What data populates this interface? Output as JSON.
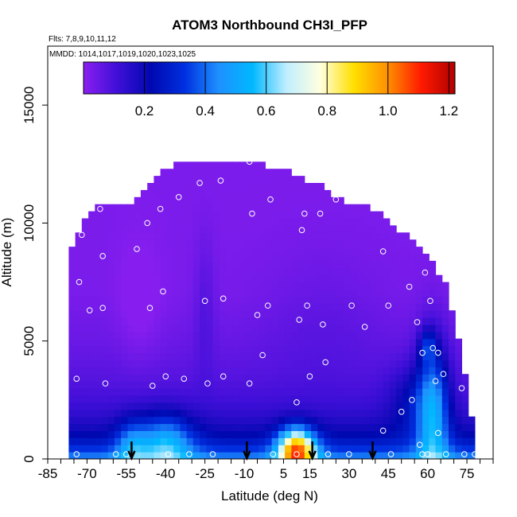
{
  "chart_data": {
    "type": "heatmap",
    "title": "ATOM3 Northbound CH3I_PFP",
    "subtitle_flights": "Flts: 7,8,9,10,11,12",
    "subtitle_dates": "MMDD: 1014,1017,1019,1020,1023,1025",
    "xlabel": "Latitude (deg N)",
    "ylabel": "Altitude (m)",
    "xlim": [
      -85,
      85
    ],
    "ylim": [
      0,
      17500
    ],
    "x_tick_labels": [
      "-85",
      "-70",
      "-55",
      "-40",
      "-25",
      "-10",
      "5",
      "15",
      "30",
      "45",
      "60",
      "75"
    ],
    "x_tick_values": [
      -85,
      -70,
      -55,
      -40,
      -25,
      -10,
      5,
      15,
      30,
      45,
      60,
      75
    ],
    "y_tick_labels": [
      "0",
      "5000",
      "10000",
      "15000"
    ],
    "y_tick_values": [
      0,
      5000,
      10000,
      15000
    ],
    "colorbar": {
      "range": [
        0.0,
        1.22
      ],
      "tick_labels": [
        "0.2",
        "0.4",
        "0.6",
        "0.8",
        "1.0",
        "1.2"
      ],
      "tick_values": [
        0.2,
        0.4,
        0.6,
        0.8,
        1.0,
        1.2
      ],
      "colors": [
        "#8a1ff0",
        "#3f0fd8",
        "#0008b0",
        "#0030e0",
        "#1e90ff",
        "#00b8ff",
        "#bfeeff",
        "#ffffe0",
        "#ffe000",
        "#ff9000",
        "#ff1a00",
        "#b00000"
      ]
    },
    "field_extent": {
      "lat_edges": [
        -77,
        -73,
        -68,
        -63,
        -58,
        -53,
        -48,
        -43,
        -38,
        -33,
        -28,
        -23,
        -18,
        -13,
        -8,
        -3,
        2,
        7,
        12,
        17,
        22,
        27,
        32,
        37,
        42,
        47,
        52,
        57,
        62,
        67,
        72,
        77
      ],
      "top_alt_edges": [
        8600,
        9600,
        10400,
        10700,
        10700,
        10800,
        11200,
        11800,
        12300,
        12500,
        12500,
        12500,
        12500,
        12500,
        12500,
        12300,
        12200,
        12000,
        11800,
        11500,
        11300,
        10800,
        10600,
        10500,
        10200,
        9800,
        9300,
        8700,
        8200,
        7200,
        4800,
        1500
      ]
    },
    "profile_arrows_lat": [
      -53,
      -9,
      16,
      39
    ],
    "flight_track_points": [
      {
        "lat": -74,
        "alt": 200
      },
      {
        "lat": -74,
        "alt": 3400
      },
      {
        "lat": -73,
        "alt": 7500
      },
      {
        "lat": -72,
        "alt": 9500
      },
      {
        "lat": -69,
        "alt": 6300
      },
      {
        "lat": -65,
        "alt": 10600
      },
      {
        "lat": -64,
        "alt": 8600
      },
      {
        "lat": -64,
        "alt": 6400
      },
      {
        "lat": -63,
        "alt": 3200
      },
      {
        "lat": -59,
        "alt": 200
      },
      {
        "lat": -55,
        "alt": 200
      },
      {
        "lat": -51,
        "alt": 8900
      },
      {
        "lat": -47,
        "alt": 10000
      },
      {
        "lat": -46,
        "alt": 6400
      },
      {
        "lat": -45,
        "alt": 3100
      },
      {
        "lat": -42,
        "alt": 10600
      },
      {
        "lat": -41,
        "alt": 7100
      },
      {
        "lat": -40,
        "alt": 3500
      },
      {
        "lat": -39,
        "alt": 200
      },
      {
        "lat": -35,
        "alt": 11100
      },
      {
        "lat": -33,
        "alt": 3400
      },
      {
        "lat": -31,
        "alt": 200
      },
      {
        "lat": -27,
        "alt": 11700
      },
      {
        "lat": -25,
        "alt": 6700
      },
      {
        "lat": -24,
        "alt": 3200
      },
      {
        "lat": -22,
        "alt": 200
      },
      {
        "lat": -19,
        "alt": 11800
      },
      {
        "lat": -18,
        "alt": 6800
      },
      {
        "lat": -18,
        "alt": 3500
      },
      {
        "lat": -8,
        "alt": 12600
      },
      {
        "lat": -8,
        "alt": 3200
      },
      {
        "lat": -7,
        "alt": 10400
      },
      {
        "lat": -5,
        "alt": 6100
      },
      {
        "lat": -3,
        "alt": 4400
      },
      {
        "lat": -1,
        "alt": 6500
      },
      {
        "lat": 0,
        "alt": 11000
      },
      {
        "lat": 1,
        "alt": 200
      },
      {
        "lat": 10,
        "alt": 2400
      },
      {
        "lat": 10,
        "alt": 200
      },
      {
        "lat": 11,
        "alt": 5900
      },
      {
        "lat": 12,
        "alt": 9700
      },
      {
        "lat": 13,
        "alt": 10400
      },
      {
        "lat": 14,
        "alt": 6500
      },
      {
        "lat": 15,
        "alt": 3500
      },
      {
        "lat": 19,
        "alt": 10400
      },
      {
        "lat": 20,
        "alt": 5700
      },
      {
        "lat": 21,
        "alt": 4100
      },
      {
        "lat": 22,
        "alt": 200
      },
      {
        "lat": 25,
        "alt": 11000
      },
      {
        "lat": 30,
        "alt": 200
      },
      {
        "lat": 31,
        "alt": 6500
      },
      {
        "lat": 36,
        "alt": 5600
      },
      {
        "lat": 37,
        "alt": 11500
      },
      {
        "lat": 43,
        "alt": 8800
      },
      {
        "lat": 43,
        "alt": 1200
      },
      {
        "lat": 45,
        "alt": 6500
      },
      {
        "lat": 46,
        "alt": 200
      },
      {
        "lat": 50,
        "alt": 2000
      },
      {
        "lat": 53,
        "alt": 7300
      },
      {
        "lat": 54,
        "alt": 2500
      },
      {
        "lat": 56,
        "alt": 5800
      },
      {
        "lat": 57,
        "alt": 600
      },
      {
        "lat": 58,
        "alt": 4500
      },
      {
        "lat": 58,
        "alt": 200
      },
      {
        "lat": 59,
        "alt": 7900
      },
      {
        "lat": 60,
        "alt": 200
      },
      {
        "lat": 61,
        "alt": 6700
      },
      {
        "lat": 62,
        "alt": 4700
      },
      {
        "lat": 63,
        "alt": 3300
      },
      {
        "lat": 64,
        "alt": 1100
      },
      {
        "lat": 64,
        "alt": 4500
      },
      {
        "lat": 66,
        "alt": 8500
      },
      {
        "lat": 66,
        "alt": 3600
      },
      {
        "lat": 67,
        "alt": 200
      },
      {
        "lat": 71,
        "alt": 6700
      },
      {
        "lat": 73,
        "alt": 3000
      },
      {
        "lat": 74,
        "alt": 200
      },
      {
        "lat": 78,
        "alt": 200
      }
    ]
  }
}
